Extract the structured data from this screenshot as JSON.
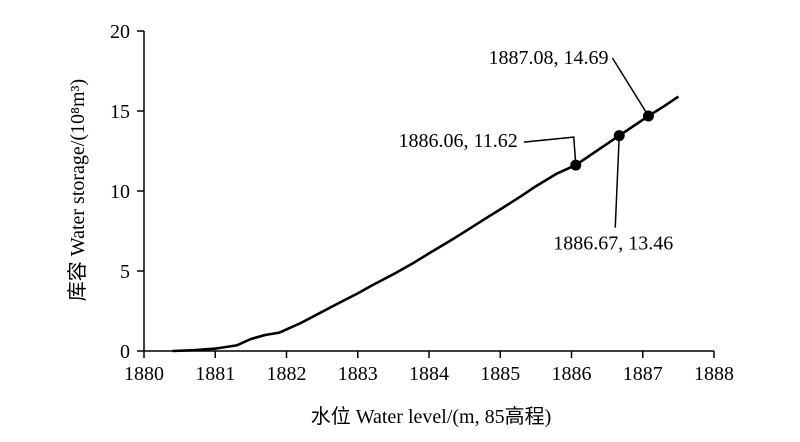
{
  "chart_data": {
    "type": "line",
    "title": "",
    "xlabel": "水位 Water level/(m, 85高程)",
    "ylabel": "库容 Water storage/(10⁸m³)",
    "xlim": [
      1880,
      1888
    ],
    "ylim": [
      0,
      20
    ],
    "x_ticks": [
      "1880",
      "1881",
      "1882",
      "1883",
      "1884",
      "1885",
      "1886",
      "1887",
      "1888"
    ],
    "y_ticks": [
      "0",
      "5",
      "10",
      "15",
      "20"
    ],
    "grid": false,
    "series": [
      {
        "x": [
          1880.4,
          1880.7,
          1881.0,
          1881.3,
          1881.5,
          1881.7,
          1881.9,
          1882.0,
          1882.2,
          1882.5,
          1882.8,
          1883.0,
          1883.2,
          1883.5,
          1883.8,
          1884.0,
          1884.3,
          1884.5,
          1884.8,
          1885.0,
          1885.3,
          1885.5,
          1885.8,
          1886.06,
          1886.3,
          1886.5,
          1886.67,
          1886.8,
          1887.08,
          1887.3,
          1887.5
        ],
        "y": [
          0.0,
          0.05,
          0.15,
          0.35,
          0.75,
          1.0,
          1.15,
          1.35,
          1.75,
          2.45,
          3.15,
          3.6,
          4.1,
          4.8,
          5.55,
          6.1,
          6.9,
          7.45,
          8.3,
          8.85,
          9.7,
          10.3,
          11.1,
          11.62,
          12.35,
          12.95,
          13.46,
          13.85,
          14.69,
          15.3,
          15.9
        ]
      }
    ],
    "points": [
      {
        "x": 1886.06,
        "y": 11.62,
        "label": "1886.06, 11.62"
      },
      {
        "x": 1886.67,
        "y": 13.46,
        "label": "1886.67, 13.46"
      },
      {
        "x": 1887.08,
        "y": 14.69,
        "label": "1887.08, 14.69"
      }
    ]
  }
}
